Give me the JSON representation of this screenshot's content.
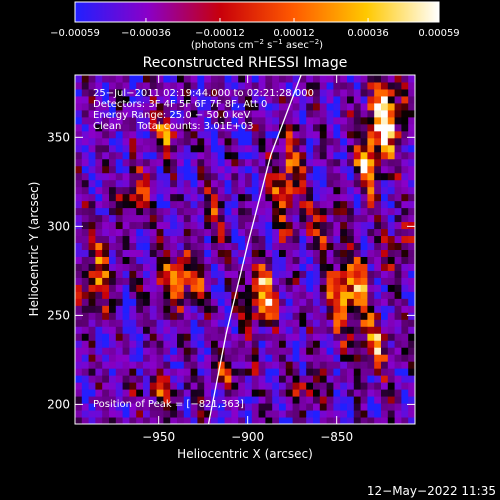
{
  "chart_data": {
    "type": "heatmap",
    "title": "Reconstructed RHESSI Image",
    "xlabel": "Heliocentric X (arcsec)",
    "ylabel": "Heliocentric Y (arcsec)",
    "xlim": [
      -997,
      -806
    ],
    "ylim": [
      189,
      385
    ],
    "xticks": [
      -950,
      -900,
      -850
    ],
    "xtick_labels": [
      "−950",
      "−900",
      "−850"
    ],
    "yticks": [
      200,
      250,
      300,
      350
    ],
    "ytick_labels": [
      "200",
      "250",
      "300",
      "350"
    ],
    "grid": false,
    "colorbar": {
      "range": [
        -0.00059,
        0.00059
      ],
      "ticks": [
        -0.00059,
        -0.00036,
        -0.00012,
        0.00012,
        0.00036,
        0.00059
      ],
      "tick_labels": [
        "−0.00059",
        "−0.00036",
        "−0.00012",
        "0.00012",
        "0.00036",
        "0.00059"
      ],
      "label_parts": [
        "(photons cm",
        "−2",
        " s",
        "−1",
        " asec",
        "−2",
        ")"
      ],
      "colors": [
        "#2020ff",
        "#8a00c8",
        "#c8000a",
        "#ff5a00",
        "#ffc800",
        "#ffffff"
      ]
    },
    "annotations": [
      "25−Jul−2011 02:19:44.000 to 02:21:28.000",
      "Detectors: 3F 4F 5F 6F 7F 8F, Att 0",
      "Energy Range: 25.0 − 50.0 keV",
      "Clean     Total counts: 3.01E+03"
    ],
    "peak_label": "Position of Peak = [−821,363]",
    "limb": [
      [
        -922,
        189
      ],
      [
        -912,
        240
      ],
      [
        -900,
        290
      ],
      [
        -887,
        340
      ],
      [
        -870,
        385
      ]
    ],
    "blobs": [
      {
        "x": -823,
        "y": 362,
        "sx": 7,
        "sy": 14,
        "a": 1.0
      },
      {
        "x": -832,
        "y": 335,
        "sx": 6,
        "sy": 12,
        "a": 0.75
      },
      {
        "x": -843,
        "y": 263,
        "sx": 8,
        "sy": 16,
        "a": 0.85
      },
      {
        "x": -828,
        "y": 233,
        "sx": 7,
        "sy": 10,
        "a": 0.6
      },
      {
        "x": -858,
        "y": 300,
        "sx": 6,
        "sy": 9,
        "a": 0.55
      },
      {
        "x": -893,
        "y": 262,
        "sx": 7,
        "sy": 12,
        "a": 0.85
      },
      {
        "x": -878,
        "y": 325,
        "sx": 6,
        "sy": 18,
        "a": 0.7
      },
      {
        "x": -938,
        "y": 270,
        "sx": 9,
        "sy": 12,
        "a": 0.75
      },
      {
        "x": -946,
        "y": 352,
        "sx": 6,
        "sy": 8,
        "a": 0.55
      },
      {
        "x": -963,
        "y": 318,
        "sx": 6,
        "sy": 10,
        "a": 0.5
      },
      {
        "x": -985,
        "y": 270,
        "sx": 7,
        "sy": 18,
        "a": 0.55
      },
      {
        "x": -948,
        "y": 205,
        "sx": 9,
        "sy": 8,
        "a": 0.45
      },
      {
        "x": -866,
        "y": 210,
        "sx": 6,
        "sy": 8,
        "a": 0.5
      },
      {
        "x": -910,
        "y": 220,
        "sx": 7,
        "sy": 8,
        "a": 0.4
      },
      {
        "x": -920,
        "y": 310,
        "sx": 6,
        "sy": 10,
        "a": 0.35
      },
      {
        "x": -815,
        "y": 290,
        "sx": 5,
        "sy": 10,
        "a": 0.4
      }
    ]
  },
  "footer": {
    "timestamp": "12−May−2022 11:35"
  }
}
